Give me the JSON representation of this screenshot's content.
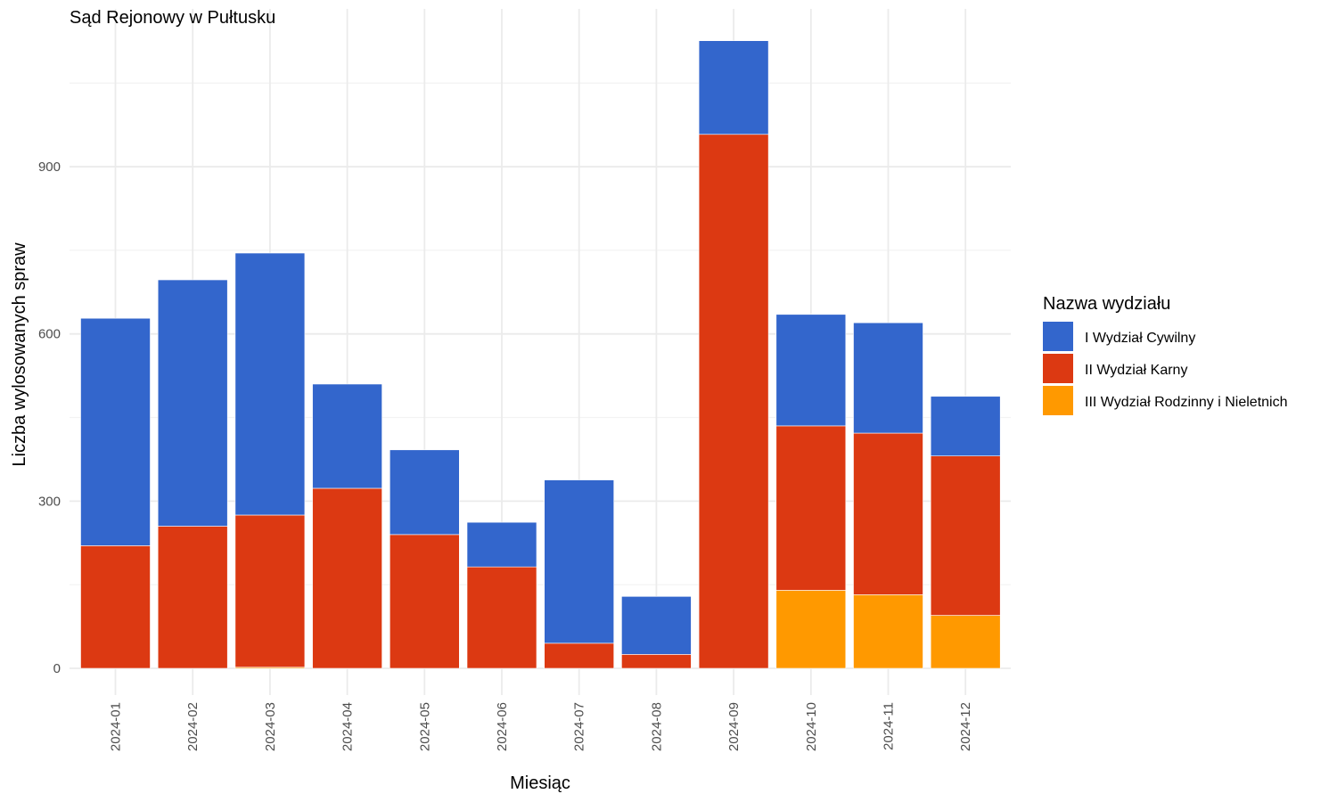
{
  "chart_data": {
    "type": "bar",
    "stacked": true,
    "title": "Sąd Rejonowy w Pułtusku",
    "xlabel": "Miesiąc",
    "ylabel": "Liczba wylosowanych spraw",
    "ylim": [
      0,
      1130
    ],
    "yticks": [
      0,
      300,
      600,
      900
    ],
    "grid": true,
    "legend_position": "right",
    "legend_title": "Nazwa wydziału",
    "categories": [
      "2024-01",
      "2024-02",
      "2024-03",
      "2024-04",
      "2024-05",
      "2024-06",
      "2024-07",
      "2024-08",
      "2024-09",
      "2024-10",
      "2024-11",
      "2024-12"
    ],
    "series": [
      {
        "name": "III Wydział Rodzinny i Nieletnich",
        "color": "#ff9900",
        "values": [
          0,
          0,
          2,
          0,
          0,
          0,
          0,
          0,
          0,
          140,
          132,
          95
        ]
      },
      {
        "name": "II Wydział Karny",
        "color": "#dc3912",
        "values": [
          220,
          255,
          273,
          323,
          240,
          182,
          45,
          25,
          958,
          295,
          290,
          286
        ]
      },
      {
        "name": "I Wydział Cywilny",
        "color": "#3366cc",
        "values": [
          408,
          442,
          470,
          187,
          152,
          80,
          293,
          104,
          168,
          200,
          198,
          107
        ]
      }
    ],
    "legend_order": [
      "I Wydział Cywilny",
      "II Wydział Karny",
      "III Wydział Rodzinny i Nieletnich"
    ]
  }
}
